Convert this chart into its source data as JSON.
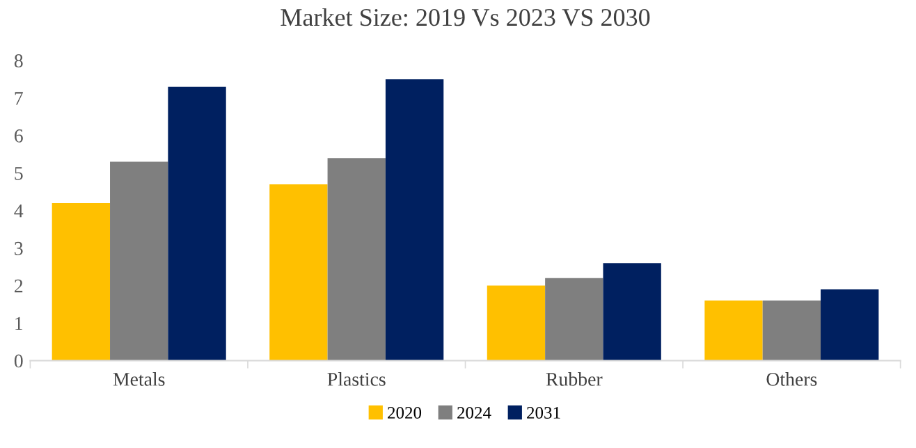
{
  "chart_data": {
    "type": "bar",
    "title": "Market Size: 2019 Vs 2023 VS 2030",
    "categories": [
      "Metals",
      "Plastics",
      "Rubber",
      "Others"
    ],
    "series": [
      {
        "name": "2020",
        "color": "#ffc000",
        "values": [
          4.2,
          4.7,
          2.0,
          1.6
        ]
      },
      {
        "name": "2024",
        "color": "#7f7f7f",
        "values": [
          5.3,
          5.4,
          2.2,
          1.6
        ]
      },
      {
        "name": "2031",
        "color": "#002060",
        "values": [
          7.3,
          7.5,
          2.6,
          1.9
        ]
      }
    ],
    "ylim": [
      0,
      8
    ],
    "yticks": [
      0,
      1,
      2,
      3,
      4,
      5,
      6,
      7,
      8
    ],
    "grid": false,
    "legend": "bottom"
  }
}
